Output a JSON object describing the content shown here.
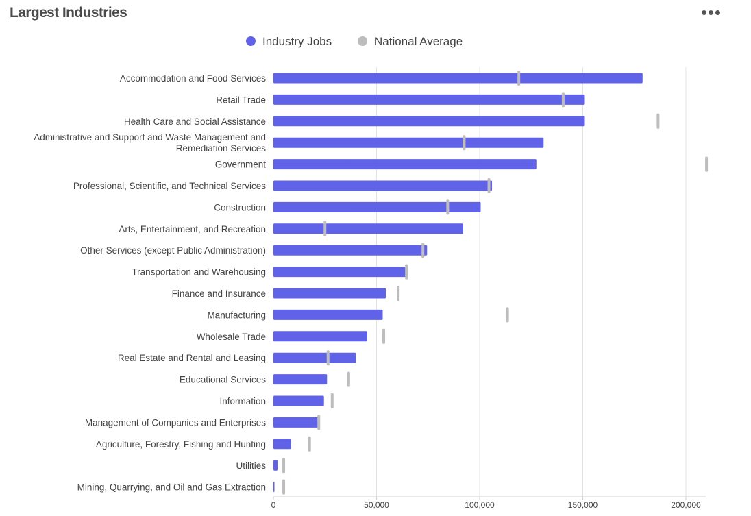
{
  "header": {
    "title": "Largest Industries",
    "menu_icon": "more-horizontal-icon"
  },
  "colors": {
    "industry_jobs": "#6062e8",
    "national_average": "#bdbdbd",
    "grid": "#e3e3e3",
    "text": "#444444"
  },
  "chart_data": {
    "type": "bar",
    "orientation": "horizontal",
    "title": "Largest Industries",
    "legend_position": "top-center",
    "grid": true,
    "xlim": [
      0,
      210000
    ],
    "x_ticks": [
      0,
      50000,
      100000,
      150000,
      200000
    ],
    "x_tick_labels": [
      "0",
      "50,000",
      "100,000",
      "150,000",
      "200,000"
    ],
    "categories": [
      [
        "Accommodation and Food Services"
      ],
      [
        "Retail Trade"
      ],
      [
        "Health Care and Social Assistance"
      ],
      [
        "Administrative and Support and Waste Management and",
        "Remediation Services"
      ],
      [
        "Government"
      ],
      [
        "Professional, Scientific, and Technical Services"
      ],
      [
        "Construction"
      ],
      [
        "Arts, Entertainment, and Recreation"
      ],
      [
        "Other Services (except Public Administration)"
      ],
      [
        "Transportation and Warehousing"
      ],
      [
        "Finance and Insurance"
      ],
      [
        "Manufacturing"
      ],
      [
        "Wholesale Trade"
      ],
      [
        "Real Estate and Rental and Leasing"
      ],
      [
        "Educational Services"
      ],
      [
        "Information"
      ],
      [
        "Management of Companies and Enterprises"
      ],
      [
        "Agriculture, Forestry, Fishing and Hunting"
      ],
      [
        "Utilities"
      ],
      [
        "Mining, Quarrying, and Oil and Gas Extraction"
      ]
    ],
    "series": [
      {
        "name": "Industry Jobs",
        "kind": "bar",
        "values": [
          179000,
          151000,
          151000,
          131000,
          127500,
          106000,
          100500,
          92000,
          74500,
          64500,
          54500,
          53000,
          45500,
          40000,
          26000,
          24500,
          22000,
          8500,
          2000,
          500
        ]
      },
      {
        "name": "National Average",
        "kind": "marker",
        "values": [
          119000,
          140500,
          186500,
          92500,
          210000,
          104500,
          84500,
          25000,
          72500,
          64500,
          60500,
          113500,
          53500,
          26500,
          36500,
          28500,
          22000,
          17500,
          5000,
          5000
        ]
      }
    ]
  }
}
